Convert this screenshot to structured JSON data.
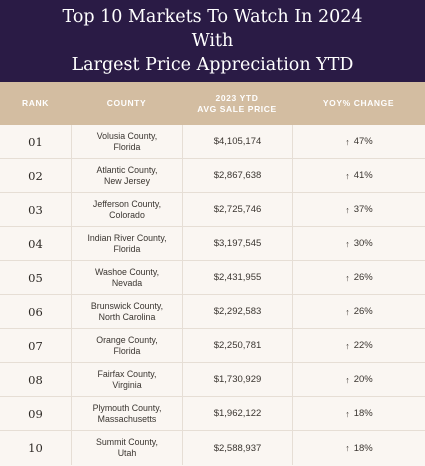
{
  "header": {
    "title_line1": "Top 10 Markets To Watch In 2024 With",
    "title_line2": "Largest Price Appreciation YTD"
  },
  "columns": {
    "rank": "RANK",
    "county": "COUNTY",
    "price_line1": "2023 YTD",
    "price_line2": "AVG SALE PRICE",
    "change": "YOY% CHANGE"
  },
  "icons": {
    "change_arrow": "up-arrow-icon"
  },
  "rows": [
    {
      "rank": "01",
      "county_line1": "Volusia County,",
      "county_line2": "Florida",
      "price": "$4,105,174",
      "arrow": "↑",
      "change": "47%"
    },
    {
      "rank": "02",
      "county_line1": "Atlantic County,",
      "county_line2": "New Jersey",
      "price": "$2,867,638",
      "arrow": "↑",
      "change": "41%"
    },
    {
      "rank": "03",
      "county_line1": "Jefferson County,",
      "county_line2": "Colorado",
      "price": "$2,725,746",
      "arrow": "↑",
      "change": "37%"
    },
    {
      "rank": "04",
      "county_line1": "Indian River County,",
      "county_line2": "Florida",
      "price": "$3,197,545",
      "arrow": "↑",
      "change": "30%"
    },
    {
      "rank": "05",
      "county_line1": "Washoe County,",
      "county_line2": "Nevada",
      "price": "$2,431,955",
      "arrow": "↑",
      "change": "26%"
    },
    {
      "rank": "06",
      "county_line1": "Brunswick County,",
      "county_line2": "North Carolina",
      "price": "$2,292,583",
      "arrow": "↑",
      "change": "26%"
    },
    {
      "rank": "07",
      "county_line1": "Orange County,",
      "county_line2": "Florida",
      "price": "$2,250,781",
      "arrow": "↑",
      "change": "22%"
    },
    {
      "rank": "08",
      "county_line1": "Fairfax County,",
      "county_line2": "Virginia",
      "price": "$1,730,929",
      "arrow": "↑",
      "change": "20%"
    },
    {
      "rank": "09",
      "county_line1": "Plymouth County,",
      "county_line2": "Massachusetts",
      "price": "$1,962,122",
      "arrow": "↑",
      "change": "18%"
    },
    {
      "rank": "10",
      "county_line1": "Summit County,",
      "county_line2": "Utah",
      "price": "$2,588,937",
      "arrow": "↑",
      "change": "18%"
    }
  ]
}
